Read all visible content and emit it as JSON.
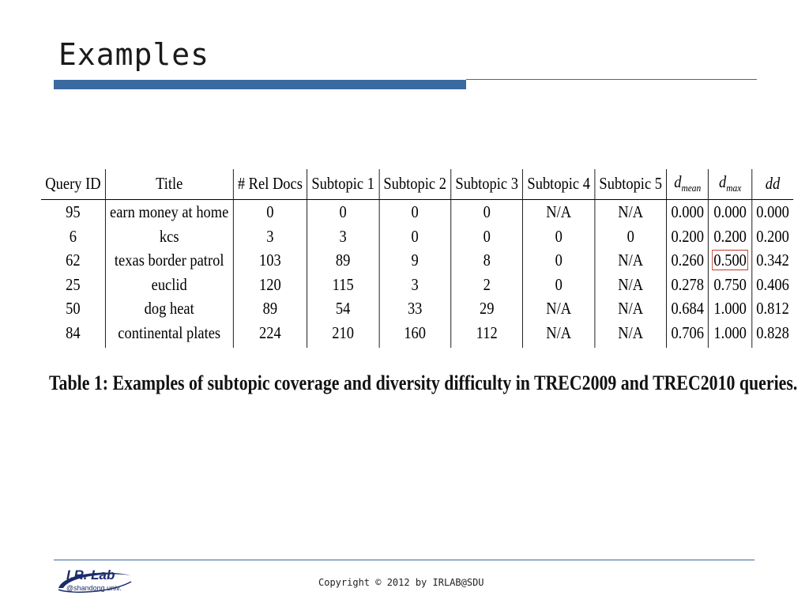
{
  "slide": {
    "title": "Examples",
    "caption": "Table 1: Examples of subtopic coverage and diversity difficulty in TREC2009 and TREC2010 queries."
  },
  "table": {
    "headers": [
      "Query ID",
      "Title",
      "# Rel Docs",
      "Subtopic 1",
      "Subtopic 2",
      "Subtopic 3",
      "Subtopic 4",
      "Subtopic 5",
      "d",
      "d",
      "dd"
    ],
    "header_subscripts": {
      "dmean": "mean",
      "dmax": "max"
    },
    "rows": [
      [
        "95",
        "earn money at home",
        "0",
        "0",
        "0",
        "0",
        "N/A",
        "N/A",
        "0.000",
        "0.000",
        "0.000"
      ],
      [
        "6",
        "kcs",
        "3",
        "3",
        "0",
        "0",
        "0",
        "0",
        "0.200",
        "0.200",
        "0.200"
      ],
      [
        "62",
        "texas border patrol",
        "103",
        "89",
        "9",
        "8",
        "0",
        "N/A",
        "0.260",
        "0.500",
        "0.342"
      ],
      [
        "25",
        "euclid",
        "120",
        "115",
        "3",
        "2",
        "0",
        "N/A",
        "0.278",
        "0.750",
        "0.406"
      ],
      [
        "50",
        "dog heat",
        "89",
        "54",
        "33",
        "29",
        "N/A",
        "N/A",
        "0.684",
        "1.000",
        "0.812"
      ],
      [
        "84",
        "continental plates",
        "224",
        "210",
        "160",
        "112",
        "N/A",
        "N/A",
        "0.706",
        "1.000",
        "0.828"
      ]
    ],
    "highlight": {
      "row": 2,
      "col": 9,
      "color": "#c0392b"
    }
  },
  "footer": {
    "logo_title": "I.R. Lab",
    "logo_subtitle": "@shandong univ.",
    "copyright": "Copyright © 2012 by IRLAB@SDU"
  },
  "colors": {
    "accent": "#3b6aa0",
    "logo": "#1a2c6b"
  }
}
